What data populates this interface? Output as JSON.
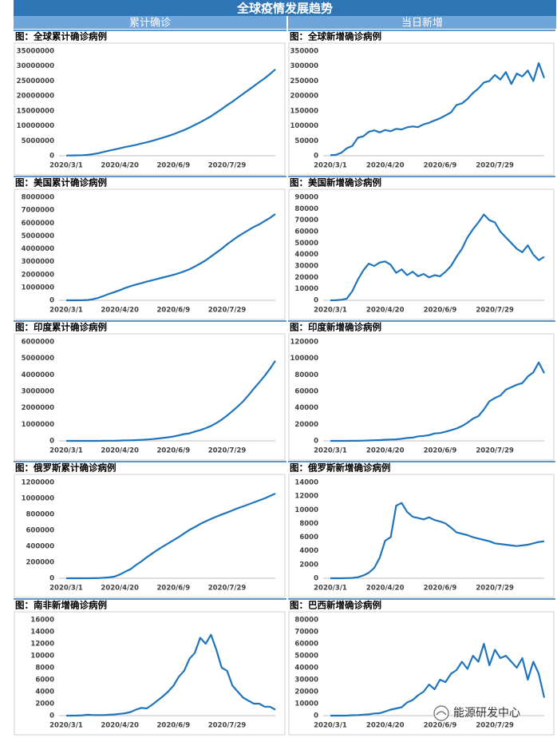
{
  "header": {
    "title": "全球疫情发展趋势",
    "left": "累计确诊",
    "right": "当日新增",
    "watermark": "能源研发中心"
  },
  "chart_data": [
    {
      "type": "line",
      "title": "图：全球累计确诊病例",
      "color": "#1f75bd",
      "categories": [
        "2020/3/1",
        null,
        null,
        null,
        null,
        null,
        null,
        null,
        null,
        null,
        "2020/4/20",
        null,
        null,
        null,
        null,
        null,
        null,
        null,
        null,
        null,
        "2020/6/9",
        null,
        null,
        null,
        null,
        null,
        null,
        null,
        null,
        null,
        "2020/7/29",
        null,
        null,
        null,
        null,
        null,
        null,
        null,
        null,
        null
      ],
      "values": [
        88000,
        100000,
        125000,
        180000,
        300000,
        530000,
        860000,
        1270000,
        1700000,
        2080000,
        2480000,
        2900000,
        3260000,
        3630000,
        4100000,
        4500000,
        4970000,
        5500000,
        6050000,
        6600000,
        7200000,
        7900000,
        8600000,
        9400000,
        10300000,
        11200000,
        12200000,
        13200000,
        14400000,
        15600000,
        16900000,
        18100000,
        19400000,
        20700000,
        22000000,
        23300000,
        24600000,
        25900000,
        27300000,
        28900000
      ],
      "ylim": [
        0,
        35000000
      ],
      "yticks": [
        0,
        5000000,
        10000000,
        15000000,
        20000000,
        25000000,
        30000000,
        35000000
      ],
      "grid": false
    },
    {
      "type": "line",
      "title": "图：全球新增确诊病例",
      "color": "#1f75bd",
      "categories": [
        "2020/3/1",
        null,
        null,
        null,
        null,
        null,
        null,
        null,
        null,
        null,
        "2020/4/20",
        null,
        null,
        null,
        null,
        null,
        null,
        null,
        null,
        null,
        "2020/6/9",
        null,
        null,
        null,
        null,
        null,
        null,
        null,
        null,
        null,
        "2020/7/29",
        null,
        null,
        null,
        null,
        null,
        null,
        null,
        null,
        null
      ],
      "values": [
        2000,
        3000,
        10000,
        25000,
        33000,
        60000,
        65000,
        80000,
        85000,
        78000,
        86000,
        82000,
        90000,
        88000,
        95000,
        98000,
        96000,
        105000,
        110000,
        118000,
        125000,
        135000,
        145000,
        170000,
        175000,
        190000,
        210000,
        225000,
        245000,
        250000,
        270000,
        255000,
        280000,
        240000,
        275000,
        265000,
        285000,
        250000,
        310000,
        260000
      ],
      "ylim": [
        0,
        350000
      ],
      "yticks": [
        0,
        50000,
        100000,
        150000,
        200000,
        250000,
        300000,
        350000
      ],
      "grid": false
    },
    {
      "type": "line",
      "title": "图：美国累计确诊病例",
      "color": "#1f75bd",
      "categories": [
        "2020/3/1",
        null,
        null,
        null,
        null,
        null,
        null,
        null,
        null,
        null,
        "2020/4/20",
        null,
        null,
        null,
        null,
        null,
        null,
        null,
        null,
        null,
        "2020/6/9",
        null,
        null,
        null,
        null,
        null,
        null,
        null,
        null,
        null,
        "2020/7/29",
        null,
        null,
        null,
        null,
        null,
        null,
        null,
        null,
        null
      ],
      "values": [
        70,
        300,
        1300,
        4500,
        25000,
        85000,
        190000,
        340000,
        500000,
        640000,
        790000,
        960000,
        1100000,
        1220000,
        1330000,
        1450000,
        1550000,
        1660000,
        1770000,
        1870000,
        1980000,
        2100000,
        2250000,
        2410000,
        2630000,
        2850000,
        3100000,
        3400000,
        3700000,
        4000000,
        4350000,
        4650000,
        4950000,
        5200000,
        5450000,
        5700000,
        5900000,
        6150000,
        6400000,
        6700000
      ],
      "ylim": [
        0,
        8000000
      ],
      "yticks": [
        0,
        1000000,
        2000000,
        3000000,
        4000000,
        5000000,
        6000000,
        7000000,
        8000000
      ],
      "grid": false
    },
    {
      "type": "line",
      "title": "图：美国新增确诊病例",
      "color": "#1f75bd",
      "categories": [
        "2020/3/1",
        null,
        null,
        null,
        null,
        null,
        null,
        null,
        null,
        null,
        "2020/4/20",
        null,
        null,
        null,
        null,
        null,
        null,
        null,
        null,
        null,
        "2020/6/9",
        null,
        null,
        null,
        null,
        null,
        null,
        null,
        null,
        null,
        "2020/7/29",
        null,
        null,
        null,
        null,
        null,
        null,
        null,
        null,
        null
      ],
      "values": [
        0,
        100,
        500,
        1500,
        8000,
        18000,
        26000,
        32000,
        30000,
        33000,
        34000,
        31000,
        24000,
        27000,
        22000,
        25000,
        21000,
        23000,
        20000,
        22000,
        21000,
        25000,
        30000,
        38000,
        45000,
        55000,
        62000,
        68000,
        75000,
        70000,
        68000,
        60000,
        55000,
        50000,
        45000,
        42000,
        48000,
        40000,
        35000,
        38000
      ],
      "ylim": [
        0,
        90000
      ],
      "yticks": [
        0,
        10000,
        20000,
        30000,
        40000,
        50000,
        60000,
        70000,
        80000,
        90000
      ],
      "grid": false
    },
    {
      "type": "line",
      "title": "图：印度累计确诊病例",
      "color": "#1f75bd",
      "categories": [
        "2020/3/1",
        null,
        null,
        null,
        null,
        null,
        null,
        null,
        null,
        null,
        "2020/4/20",
        null,
        null,
        null,
        null,
        null,
        null,
        null,
        null,
        null,
        "2020/6/9",
        null,
        null,
        null,
        null,
        null,
        null,
        null,
        null,
        null,
        "2020/7/29",
        null,
        null,
        null,
        null,
        null,
        null,
        null,
        null,
        null
      ],
      "values": [
        3,
        30,
        60,
        110,
        300,
        700,
        1400,
        3500,
        7500,
        12000,
        18000,
        27000,
        34000,
        46000,
        62000,
        82000,
        106000,
        138000,
        173000,
        216000,
        267000,
        333000,
        411000,
        457000,
        567000,
        649000,
        767000,
        907000,
        1077000,
        1287000,
        1531000,
        1804000,
        2088000,
        2395000,
        2768000,
        3166000,
        3542000,
        3936000,
        4370000,
        4850000
      ],
      "ylim": [
        0,
        6000000
      ],
      "yticks": [
        0,
        1000000,
        2000000,
        3000000,
        4000000,
        5000000,
        6000000
      ],
      "grid": false
    },
    {
      "type": "line",
      "title": "图：印度新增确诊病例",
      "color": "#1f75bd",
      "categories": [
        "2020/3/1",
        null,
        null,
        null,
        null,
        null,
        null,
        null,
        null,
        null,
        "2020/4/20",
        null,
        null,
        null,
        null,
        null,
        null,
        null,
        null,
        null,
        "2020/6/9",
        null,
        null,
        null,
        null,
        null,
        null,
        null,
        null,
        null,
        "2020/7/29",
        null,
        null,
        null,
        null,
        null,
        null,
        null,
        null,
        null
      ],
      "values": [
        0,
        0,
        10,
        20,
        80,
        100,
        300,
        500,
        800,
        1000,
        1500,
        1600,
        1800,
        2500,
        3500,
        4000,
        5500,
        6000,
        7000,
        9000,
        9500,
        11000,
        13000,
        15000,
        18000,
        22000,
        27000,
        30000,
        38000,
        48000,
        52000,
        55000,
        62000,
        65000,
        68000,
        70000,
        78000,
        83000,
        95000,
        82000
      ],
      "ylim": [
        0,
        120000
      ],
      "yticks": [
        0,
        20000,
        40000,
        60000,
        80000,
        100000,
        120000
      ],
      "grid": false
    },
    {
      "type": "line",
      "title": "图：俄罗斯累计确诊病例",
      "color": "#1f75bd",
      "categories": [
        "2020/3/1",
        null,
        null,
        null,
        null,
        null,
        null,
        null,
        null,
        null,
        "2020/4/20",
        null,
        null,
        null,
        null,
        null,
        null,
        null,
        null,
        null,
        "2020/6/9",
        null,
        null,
        null,
        null,
        null,
        null,
        null,
        null,
        null,
        "2020/7/29",
        null,
        null,
        null,
        null,
        null,
        null,
        null,
        null,
        null
      ],
      "values": [
        2,
        3,
        20,
        90,
        300,
        800,
        2300,
        6300,
        12000,
        21000,
        47000,
        82000,
        114000,
        165000,
        210000,
        262000,
        308000,
        354000,
        396000,
        436000,
        477000,
        517000,
        562000,
        606000,
        641000,
        680000,
        713000,
        743000,
        771000,
        798000,
        823000,
        850000,
        877000,
        900000,
        925000,
        950000,
        975000,
        1000000,
        1030000,
        1060000
      ],
      "ylim": [
        0,
        1200000
      ],
      "yticks": [
        0,
        200000,
        400000,
        600000,
        800000,
        1000000,
        1200000
      ],
      "grid": false
    },
    {
      "type": "line",
      "title": "图：俄罗斯新增确诊病例",
      "color": "#1f75bd",
      "categories": [
        "2020/3/1",
        null,
        null,
        null,
        null,
        null,
        null,
        null,
        null,
        null,
        "2020/4/20",
        null,
        null,
        null,
        null,
        null,
        null,
        null,
        null,
        null,
        "2020/6/9",
        null,
        null,
        null,
        null,
        null,
        null,
        null,
        null,
        null,
        "2020/7/29",
        null,
        null,
        null,
        null,
        null,
        null,
        null,
        null,
        null
      ],
      "values": [
        0,
        0,
        5,
        20,
        50,
        150,
        400,
        800,
        1500,
        3000,
        5500,
        6000,
        10600,
        11000,
        9700,
        9000,
        8800,
        8600,
        8900,
        8500,
        8300,
        8000,
        7400,
        6700,
        6500,
        6300,
        6000,
        5800,
        5600,
        5400,
        5100,
        5000,
        4900,
        4800,
        4700,
        4800,
        4900,
        5100,
        5300,
        5400
      ],
      "ylim": [
        0,
        14000
      ],
      "yticks": [
        0,
        2000,
        4000,
        6000,
        8000,
        10000,
        12000,
        14000
      ],
      "grid": false
    },
    {
      "type": "line",
      "title": "图：南非新增确诊病例",
      "color": "#1f75bd",
      "categories": [
        "2020/3/1",
        null,
        null,
        null,
        null,
        null,
        null,
        null,
        null,
        null,
        "2020/4/20",
        null,
        null,
        null,
        null,
        null,
        null,
        null,
        null,
        null,
        "2020/6/9",
        null,
        null,
        null,
        null,
        null,
        null,
        null,
        null,
        null,
        "2020/7/29",
        null,
        null,
        null,
        null,
        null,
        null,
        null,
        null,
        null
      ],
      "values": [
        0,
        0,
        10,
        50,
        150,
        100,
        80,
        100,
        150,
        200,
        300,
        400,
        600,
        1000,
        1300,
        1200,
        1800,
        2500,
        3200,
        4000,
        5000,
        6500,
        7500,
        9500,
        10500,
        13000,
        12000,
        13500,
        11000,
        8000,
        7500,
        5000,
        4000,
        3000,
        2500,
        2000,
        2000,
        1500,
        1500,
        1000
      ],
      "ylim": [
        0,
        16000
      ],
      "yticks": [
        0,
        2000,
        4000,
        6000,
        8000,
        10000,
        12000,
        14000,
        16000
      ],
      "grid": false
    },
    {
      "type": "line",
      "title": "图：巴西新增确诊病例",
      "color": "#1f75bd",
      "categories": [
        "2020/3/1",
        null,
        null,
        null,
        null,
        null,
        null,
        null,
        null,
        null,
        "2020/4/20",
        null,
        null,
        null,
        null,
        null,
        null,
        null,
        null,
        null,
        "2020/6/9",
        null,
        null,
        null,
        null,
        null,
        null,
        null,
        null,
        null,
        "2020/7/29",
        null,
        null,
        null,
        null,
        null,
        null,
        null,
        null,
        null
      ],
      "values": [
        0,
        0,
        10,
        50,
        300,
        400,
        800,
        1100,
        1800,
        2000,
        3500,
        5000,
        6000,
        7000,
        11000,
        13000,
        17000,
        20000,
        26000,
        22000,
        30000,
        28000,
        35000,
        38000,
        45000,
        39000,
        50000,
        45000,
        60000,
        42000,
        55000,
        48000,
        50000,
        45000,
        40000,
        48000,
        30000,
        45000,
        35000,
        15000
      ],
      "ylim": [
        0,
        80000
      ],
      "yticks": [
        0,
        10000,
        20000,
        30000,
        40000,
        50000,
        60000,
        70000,
        80000
      ],
      "grid": false
    }
  ]
}
